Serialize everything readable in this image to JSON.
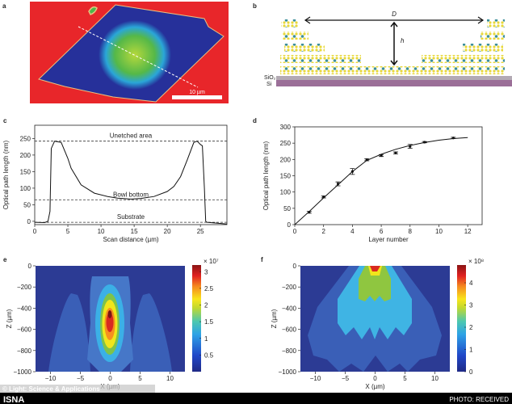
{
  "panel_labels": {
    "a": "a",
    "b": "b",
    "c": "c",
    "d": "d",
    "e": "e",
    "f": "f"
  },
  "panel_a": {
    "scale_bar": "10 µm",
    "colors": {
      "background": "#e8262a",
      "flake": "#26309a",
      "center": "#9ccc3c"
    }
  },
  "panel_b": {
    "D": "D",
    "h": "h",
    "sio2": "SiO₂",
    "si": "Si",
    "colors": {
      "sio2": "#b3aab4",
      "si": "#9b6f98",
      "atom_a": "#e8d83a",
      "atom_b": "#3d8f9a"
    }
  },
  "chart_data": [
    {
      "id": "c",
      "type": "line",
      "xlabel": "Scan distance (µm)",
      "ylabel": "Optical path length (nm)",
      "xlim": [
        0,
        29
      ],
      "ylim": [
        -10,
        290
      ],
      "x_ticks": [
        0,
        5,
        10,
        15,
        20,
        25
      ],
      "y_ticks": [
        0,
        50,
        100,
        150,
        200,
        250
      ],
      "series": [
        {
          "name": "profile",
          "points": [
            [
              0,
              -3
            ],
            [
              1.5,
              -4
            ],
            [
              2,
              0
            ],
            [
              2.3,
              30
            ],
            [
              2.5,
              220
            ],
            [
              3,
              242
            ],
            [
              4,
              238
            ],
            [
              5,
              190
            ],
            [
              5.5,
              160
            ],
            [
              7,
              110
            ],
            [
              9,
              85
            ],
            [
              11,
              75
            ],
            [
              12.5,
              70
            ],
            [
              14.5,
              67
            ],
            [
              16,
              69
            ],
            [
              18,
              75
            ],
            [
              20,
              90
            ],
            [
              21,
              105
            ],
            [
              22,
              135
            ],
            [
              23,
              185
            ],
            [
              24,
              238
            ],
            [
              24.5,
              242
            ],
            [
              25,
              232
            ],
            [
              25.3,
              228
            ],
            [
              25.6,
              100
            ],
            [
              25.8,
              0
            ],
            [
              26,
              -3
            ],
            [
              29,
              -8
            ]
          ]
        }
      ],
      "reference_lines": [
        {
          "label": "Unetched area",
          "y": 242
        },
        {
          "label": "Bowl bottom",
          "y": 65
        },
        {
          "label": "Substrate",
          "y": -3
        }
      ]
    },
    {
      "id": "d",
      "type": "scatter",
      "xlabel": "Layer number",
      "ylabel": "Optical path length (nm)",
      "xlim": [
        0,
        13
      ],
      "ylim": [
        0,
        300
      ],
      "x_ticks": [
        0,
        2,
        4,
        6,
        8,
        10,
        12
      ],
      "y_ticks": [
        0,
        50,
        100,
        150,
        200,
        250,
        300
      ],
      "points": [
        {
          "x": 1,
          "y": 38,
          "err": 3
        },
        {
          "x": 2,
          "y": 85,
          "err": 3
        },
        {
          "x": 3,
          "y": 125,
          "err": 6
        },
        {
          "x": 4,
          "y": 163,
          "err": 9
        },
        {
          "x": 5,
          "y": 199,
          "err": 3
        },
        {
          "x": 6,
          "y": 212,
          "err": 3
        },
        {
          "x": 7,
          "y": 220,
          "err": 3
        },
        {
          "x": 8,
          "y": 240,
          "err": 6
        },
        {
          "x": 9,
          "y": 253,
          "err": 2
        },
        {
          "x": 11,
          "y": 266,
          "err": 2
        }
      ],
      "fit": [
        [
          0,
          0
        ],
        [
          1,
          40
        ],
        [
          2,
          82
        ],
        [
          3,
          122
        ],
        [
          4,
          163
        ],
        [
          5,
          197
        ],
        [
          6,
          216
        ],
        [
          7,
          231
        ],
        [
          8,
          243
        ],
        [
          9,
          252
        ],
        [
          10,
          259
        ],
        [
          11,
          264
        ],
        [
          12,
          267
        ]
      ]
    },
    {
      "id": "e",
      "type": "heatmap",
      "xlabel": "X (µm)",
      "ylabel": "Z (µm)",
      "xlim": [
        -12.5,
        12.5
      ],
      "ylim": [
        -1000,
        0
      ],
      "x_ticks": [
        -10,
        -5,
        0,
        5,
        10
      ],
      "y_ticks": [
        0,
        -200,
        -400,
        -600,
        -800,
        -1000
      ],
      "colorbar": {
        "multiplier": "× 10⁷",
        "ticks": [
          0.5,
          1,
          1.5,
          2,
          2.5,
          3
        ],
        "range": [
          0,
          3.2
        ]
      },
      "peak": {
        "x": 0,
        "z": -450,
        "value": 3.1
      }
    },
    {
      "id": "f",
      "type": "heatmap",
      "xlabel": "X (µm)",
      "ylabel": "Z (µm)",
      "xlim": [
        -12.5,
        12.5
      ],
      "ylim": [
        -1000,
        0
      ],
      "x_ticks": [
        -10,
        -5,
        0,
        5,
        10
      ],
      "y_ticks": [
        0,
        -200,
        -400,
        -600,
        -800,
        -1000
      ],
      "colorbar": {
        "multiplier": "× 10⁸",
        "ticks": [
          0,
          1,
          2,
          3,
          4
        ],
        "range": [
          0,
          4.8
        ]
      },
      "peak": {
        "x": 0,
        "z": 0,
        "value": 4.7
      }
    }
  ],
  "footer": {
    "brand": "ISNA",
    "credit": "PHOTO: RECEIVED",
    "watermark": "© Light: Science & Applications"
  }
}
